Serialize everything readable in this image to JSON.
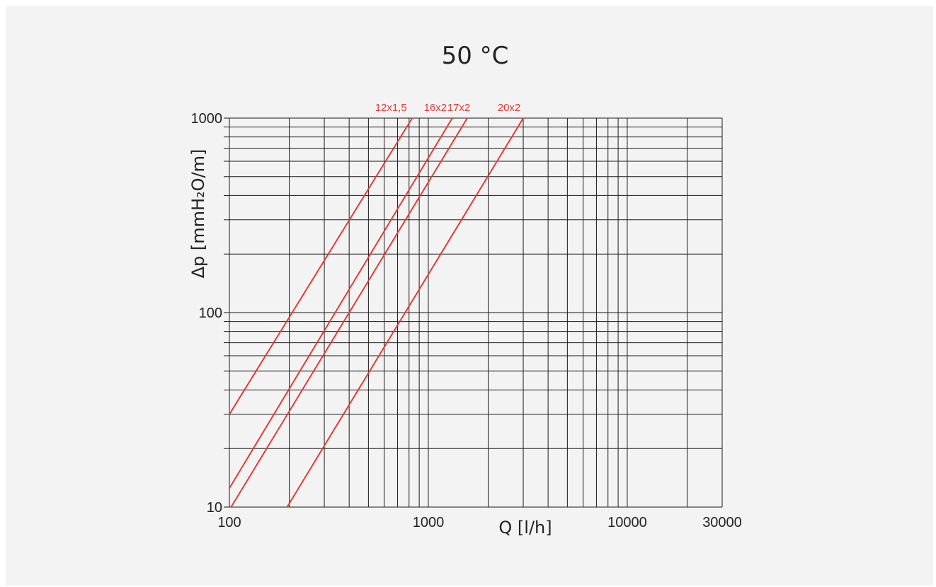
{
  "chart_data": {
    "type": "line",
    "title": "50 °C",
    "xlabel": "Q [l/h]",
    "ylabel": "Δp [mmH₂O/m]",
    "xscale": "log",
    "yscale": "log",
    "xlim": [
      100,
      30000
    ],
    "ylim": [
      10,
      1000
    ],
    "x_ticks": [
      "100",
      "1000",
      "10000",
      "30000"
    ],
    "y_ticks": [
      "10",
      "100",
      "1000"
    ],
    "grid": true,
    "legend": "labels at top of each line",
    "series_color": "#e53935",
    "series": [
      {
        "name": "12x1,5",
        "x": [
          100,
          830
        ],
        "y": [
          30,
          1000
        ]
      },
      {
        "name": "16x2",
        "x": [
          100,
          1320
        ],
        "y": [
          12.5,
          1000
        ]
      },
      {
        "name": "17x2",
        "x": [
          102,
          1570
        ],
        "y": [
          10,
          1000
        ]
      },
      {
        "name": "20x2",
        "x": [
          195,
          3000
        ],
        "y": [
          10,
          1000
        ]
      }
    ]
  }
}
